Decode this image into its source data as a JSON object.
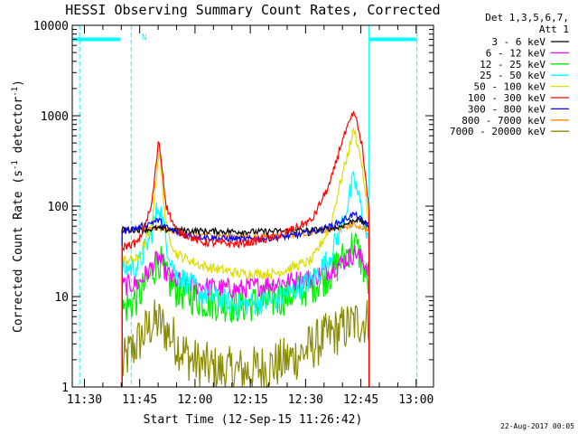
{
  "chart_data": {
    "type": "line",
    "title": "HESSI Observing Summary Count Rates, Corrected",
    "xlabel": "Start Time (12-Sep-15 11:26:42)",
    "ylabel": "Corrected Count Rate (s⁻¹ detector⁻¹)",
    "ylabel_parts": {
      "main": "Corrected Count Rate (s",
      "sup1": "-1",
      "mid": " detector",
      "sup2": "-1",
      "end": ")"
    },
    "x_unit": "minutes since 11:26:42",
    "xlim": [
      0,
      98
    ],
    "ylim": [
      1,
      10000
    ],
    "yscale": "log",
    "x_ticks": [
      {
        "label": "11:30",
        "x": 3.3
      },
      {
        "label": "11:45",
        "x": 18.3
      },
      {
        "label": "12:00",
        "x": 33.3
      },
      {
        "label": "12:15",
        "x": 48.3
      },
      {
        "label": "12:30",
        "x": 63.3
      },
      {
        "label": "12:45",
        "x": 78.3
      },
      {
        "label": "13:00",
        "x": 93.3
      }
    ],
    "y_ticks": [
      {
        "label": "10000",
        "y": 10000
      },
      {
        "label": "1000",
        "y": 1000
      },
      {
        "label": "100",
        "y": 100
      },
      {
        "label": "10",
        "y": 10
      },
      {
        "label": "1",
        "y": 1
      }
    ],
    "legend_header": [
      "Det 1,3,5,6,7,",
      "Att 1"
    ],
    "legend_position": "outside-right",
    "data_start": 13.5,
    "data_end": 80.5,
    "series": [
      {
        "name": "3 - 6 keV",
        "color": "#000000",
        "noise": 0.015,
        "points": [
          [
            13.5,
            55
          ],
          [
            20,
            55
          ],
          [
            22,
            56
          ],
          [
            23.5,
            57
          ],
          [
            25,
            55
          ],
          [
            35,
            53
          ],
          [
            50,
            52
          ],
          [
            65,
            54
          ],
          [
            72,
            58
          ],
          [
            75,
            65
          ],
          [
            77,
            72
          ],
          [
            78.5,
            68
          ],
          [
            80.5,
            60
          ]
        ]
      },
      {
        "name": "6 - 12 keV",
        "color": "#ff00ff",
        "noise": 0.05,
        "points": [
          [
            13.5,
            13
          ],
          [
            18,
            14
          ],
          [
            21.5,
            21
          ],
          [
            23.5,
            27
          ],
          [
            25.5,
            18
          ],
          [
            28,
            15
          ],
          [
            35,
            13
          ],
          [
            45,
            12
          ],
          [
            55,
            14
          ],
          [
            65,
            16
          ],
          [
            70,
            20
          ],
          [
            74,
            25
          ],
          [
            77,
            31
          ],
          [
            78.5,
            26
          ],
          [
            80.5,
            20
          ]
        ]
      },
      {
        "name": "12 - 25 keV",
        "color": "#00ee00",
        "noise": 0.09,
        "points": [
          [
            13.5,
            7
          ],
          [
            18,
            10
          ],
          [
            21.5,
            18
          ],
          [
            23.5,
            26
          ],
          [
            25.5,
            16
          ],
          [
            28,
            12
          ],
          [
            35,
            9
          ],
          [
            45,
            8
          ],
          [
            55,
            9
          ],
          [
            65,
            13
          ],
          [
            70,
            18
          ],
          [
            74,
            28
          ],
          [
            76.5,
            40
          ],
          [
            78,
            28
          ],
          [
            80.5,
            13
          ]
        ]
      },
      {
        "name": "25 - 50 keV",
        "color": "#00ffff",
        "noise": 0.06,
        "points": [
          [
            13.5,
            20
          ],
          [
            18,
            22
          ],
          [
            21.5,
            50
          ],
          [
            23.5,
            110
          ],
          [
            25.5,
            40
          ],
          [
            28,
            18
          ],
          [
            35,
            11
          ],
          [
            45,
            8
          ],
          [
            55,
            9
          ],
          [
            65,
            15
          ],
          [
            70,
            28
          ],
          [
            73,
            60
          ],
          [
            76.5,
            200
          ],
          [
            78.5,
            90
          ],
          [
            80.5,
            35
          ]
        ]
      },
      {
        "name": "50 - 100 keV",
        "color": "#dddd00",
        "noise": 0.025,
        "points": [
          [
            13.5,
            25
          ],
          [
            18,
            26
          ],
          [
            21.5,
            60
          ],
          [
            23.5,
            420
          ],
          [
            25.5,
            60
          ],
          [
            28,
            30
          ],
          [
            35,
            22
          ],
          [
            45,
            18
          ],
          [
            55,
            18
          ],
          [
            65,
            25
          ],
          [
            70,
            60
          ],
          [
            73,
            200
          ],
          [
            76.5,
            720
          ],
          [
            78.5,
            300
          ],
          [
            80.5,
            60
          ]
        ]
      },
      {
        "name": "100 - 300 keV",
        "color": "#ff0000",
        "noise": 0.02,
        "points": [
          [
            13.5,
            35
          ],
          [
            18,
            40
          ],
          [
            21.5,
            100
          ],
          [
            23.5,
            550
          ],
          [
            25.5,
            100
          ],
          [
            28,
            55
          ],
          [
            35,
            40
          ],
          [
            45,
            38
          ],
          [
            55,
            45
          ],
          [
            65,
            70
          ],
          [
            70,
            180
          ],
          [
            73,
            500
          ],
          [
            76.5,
            1100
          ],
          [
            78.5,
            500
          ],
          [
            80.5,
            90
          ]
        ]
      },
      {
        "name": "300 - 800 keV",
        "color": "#0000ff",
        "noise": 0.015,
        "points": [
          [
            13.5,
            52
          ],
          [
            18,
            58
          ],
          [
            21.5,
            66
          ],
          [
            23.5,
            70
          ],
          [
            25.5,
            58
          ],
          [
            30,
            48
          ],
          [
            40,
            44
          ],
          [
            50,
            43
          ],
          [
            60,
            47
          ],
          [
            68,
            55
          ],
          [
            73,
            68
          ],
          [
            76.5,
            82
          ],
          [
            78.5,
            70
          ],
          [
            80.5,
            60
          ]
        ]
      },
      {
        "name": "800 - 7000 keV",
        "color": "#ff8c00",
        "noise": 0.012,
        "points": [
          [
            13.5,
            53
          ],
          [
            18,
            55
          ],
          [
            21.5,
            56
          ],
          [
            23.5,
            57
          ],
          [
            25.5,
            55
          ],
          [
            30,
            50
          ],
          [
            40,
            47
          ],
          [
            50,
            46
          ],
          [
            60,
            48
          ],
          [
            68,
            53
          ],
          [
            73,
            58
          ],
          [
            76.5,
            62
          ],
          [
            78.5,
            58
          ],
          [
            80.5,
            55
          ]
        ]
      },
      {
        "name": "7000 - 20000 keV",
        "color": "#8b8b00",
        "noise": 0.12,
        "points": [
          [
            13.5,
            1.6
          ],
          [
            15,
            2.2
          ],
          [
            18,
            3.2
          ],
          [
            21.5,
            5
          ],
          [
            23.5,
            5.2
          ],
          [
            25.5,
            4.2
          ],
          [
            28,
            3.2
          ],
          [
            30,
            2.5
          ],
          [
            33,
            1.9
          ],
          [
            40,
            1.5
          ],
          [
            48,
            1.5
          ],
          [
            56,
            1.8
          ],
          [
            62,
            2.3
          ],
          [
            66,
            3.0
          ],
          [
            70,
            3.8
          ],
          [
            74,
            4.5
          ],
          [
            77,
            5.2
          ],
          [
            80.5,
            5.5
          ]
        ]
      }
    ]
  },
  "annotations": {
    "flag_label": "N",
    "timestamp": "22-Aug-2017 00:05"
  }
}
